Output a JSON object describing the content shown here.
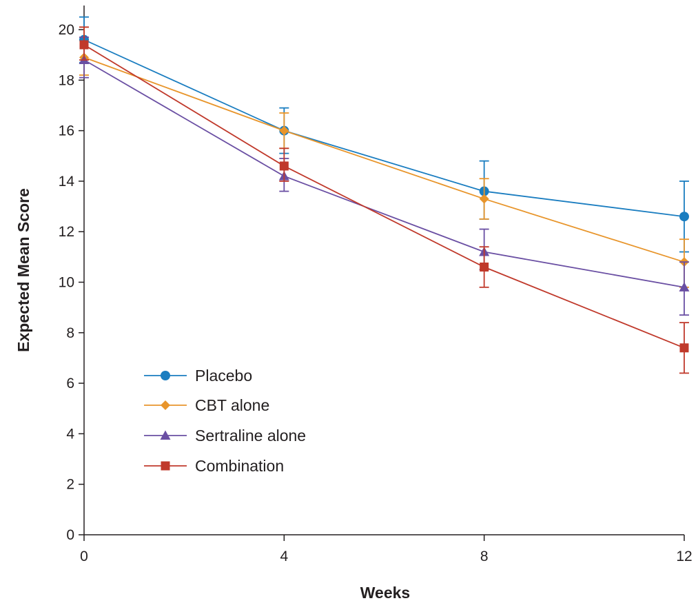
{
  "chart_data": {
    "type": "line",
    "title": "",
    "xlabel": "Weeks",
    "ylabel": "Expected Mean Score",
    "x": [
      0,
      4,
      8,
      12
    ],
    "xticks": [
      0,
      4,
      8,
      12
    ],
    "yticks": [
      0,
      2,
      4,
      6,
      8,
      10,
      12,
      14,
      16,
      18,
      20
    ],
    "xlim": [
      0,
      12
    ],
    "ylim": [
      0,
      21
    ],
    "grid": false,
    "legend_position": "lower-left",
    "error_bars": true,
    "series": [
      {
        "name": "Placebo",
        "color": "#1a7dc0",
        "marker": "circle",
        "values": [
          19.6,
          16.0,
          13.6,
          12.6
        ],
        "error_low": [
          18.7,
          15.1,
          12.5,
          11.2
        ],
        "error_high": [
          20.5,
          16.9,
          14.8,
          14.0
        ]
      },
      {
        "name": "CBT alone",
        "color": "#e8952b",
        "marker": "diamond",
        "values": [
          18.9,
          16.0,
          13.3,
          10.8
        ],
        "error_low": [
          18.2,
          15.3,
          12.5,
          9.8
        ],
        "error_high": [
          20.1,
          16.7,
          14.1,
          11.7
        ]
      },
      {
        "name": "Sertraline alone",
        "color": "#6a4fa3",
        "marker": "triangle",
        "values": [
          18.8,
          14.2,
          11.2,
          9.8
        ],
        "error_low": [
          18.1,
          13.6,
          10.5,
          8.7
        ],
        "error_high": [
          19.7,
          14.9,
          12.1,
          10.8
        ]
      },
      {
        "name": "Combination",
        "color": "#c0392b",
        "marker": "square",
        "values": [
          19.4,
          14.6,
          10.6,
          7.4
        ],
        "error_low": [
          18.8,
          14.0,
          9.8,
          6.4
        ],
        "error_high": [
          20.1,
          15.3,
          11.4,
          8.4
        ]
      }
    ]
  }
}
